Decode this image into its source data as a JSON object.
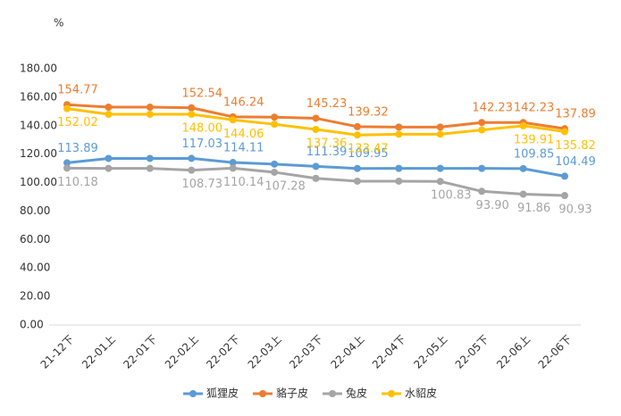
{
  "chart_data": {
    "type": "line",
    "ylabel": "%",
    "categories": [
      "21-12下",
      "22-01上",
      "22-01下",
      "22-02上",
      "22-02下",
      "22-03上",
      "22-03下",
      "22-04上",
      "22-04下",
      "22-05上",
      "22-05下",
      "22-06上",
      "22-06下"
    ],
    "series": [
      {
        "name": "狐狸皮",
        "color": "#5b9bd5",
        "label_side": "above",
        "values": [
          113.89,
          117,
          117,
          117.03,
          114.11,
          113,
          111.39,
          109.95,
          110,
          110,
          110,
          109.85,
          104.49
        ],
        "value_labels": [
          "113.89",
          null,
          null,
          "117.03",
          "114.11",
          null,
          "111.39",
          "109.95",
          null,
          null,
          null,
          "109.85",
          "104.49"
        ]
      },
      {
        "name": "貉子皮",
        "color": "#ed7d31",
        "label_side": "above",
        "values": [
          154.77,
          153,
          153,
          152.54,
          146.24,
          146,
          145.23,
          139.32,
          139,
          139,
          142.23,
          142.23,
          137.89
        ],
        "value_labels": [
          "154.77",
          null,
          null,
          "152.54",
          "146.24",
          null,
          "145.23",
          "139.32",
          null,
          null,
          "142.23",
          "142.23",
          "137.89"
        ]
      },
      {
        "name": "兔皮",
        "color": "#a5a5a5",
        "label_side": "below",
        "values": [
          110.18,
          110,
          110,
          108.73,
          110.14,
          107.28,
          103,
          101,
          101,
          100.83,
          93.9,
          91.86,
          90.93
        ],
        "value_labels": [
          "110.18",
          null,
          null,
          "108.73",
          "110.14",
          "107.28",
          null,
          null,
          null,
          "100.83",
          "93.90",
          "91.86",
          "90.93"
        ]
      },
      {
        "name": "水貂皮",
        "color": "#ffc000",
        "label_side": "below",
        "values": [
          152.02,
          148,
          148,
          148,
          144.06,
          141,
          137.36,
          133.47,
          134,
          134,
          137,
          139.91,
          135.82
        ],
        "value_labels": [
          "152.02",
          null,
          null,
          "148.00",
          "144.06",
          null,
          "137.36",
          "133.47",
          null,
          null,
          null,
          "139.91",
          "135.82"
        ]
      }
    ],
    "ylim": [
      0,
      180
    ],
    "yticks": [
      {
        "value": 0,
        "label": "0.00"
      },
      {
        "value": 20,
        "label": "20.00"
      },
      {
        "value": 40,
        "label": "40.00"
      },
      {
        "value": 60,
        "label": "60.00"
      },
      {
        "value": 80,
        "label": "80.00"
      },
      {
        "value": 100,
        "label": "100.00"
      },
      {
        "value": 120,
        "label": "120.00"
      },
      {
        "value": 140,
        "label": "140.00"
      },
      {
        "value": 160,
        "label": "160.00"
      },
      {
        "value": 180,
        "label": "180.00"
      }
    ],
    "grid": false,
    "legend": "bottom"
  }
}
